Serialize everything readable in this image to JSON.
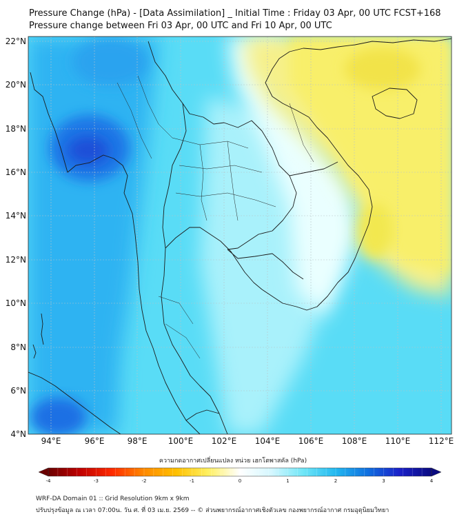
{
  "header": {
    "title_line1": "Pressure Change (hPa) - [Data Assimilation] _ Initial Time : Friday 03 Apr, 00 UTC FCST+168",
    "title_line2": "Pressure change between Fri 03 Apr, 00 UTC and Fri 10 Apr, 00 UTC"
  },
  "map": {
    "lon_ticks": [
      "94°E",
      "96°E",
      "98°E",
      "100°E",
      "102°E",
      "104°E",
      "106°E",
      "108°E",
      "110°E",
      "112°E"
    ],
    "lat_ticks": [
      "22°N",
      "20°N",
      "18°N",
      "16°N",
      "14°N",
      "12°N",
      "10°N",
      "8°N",
      "6°N",
      "4°N"
    ],
    "lon_range": [
      93,
      112.5
    ],
    "lat_range": [
      4,
      22.3
    ],
    "field_colors": {
      "yellow": "#f7f06a",
      "white": "#ffffff",
      "cyan": "#6ee6f7",
      "blue": "#2aa8f0",
      "deep_blue": "#1c5fe0"
    }
  },
  "colorbar": {
    "caption": "ความกดอากาศเปลี่ยนแปลง หน่วย เฮกโตพาสคัล (hPa)",
    "tick_labels": [
      "-4",
      "-3",
      "-2",
      "-1",
      "0",
      "1",
      "2",
      "3",
      "4"
    ],
    "min": -4,
    "max": 4,
    "colors": [
      "#6b0000",
      "#c00000",
      "#ff2a00",
      "#ff8a00",
      "#ffc000",
      "#fff060",
      "#ffffff",
      "#d4f7ff",
      "#6ee6f7",
      "#22b8f0",
      "#1070e0",
      "#1a20c8",
      "#0a0a80"
    ]
  },
  "footer": {
    "line1": "WRF-DA Domain 01 :: Grid Resolution 9km x 9km",
    "line2": "ปรับปรุงข้อมูล ณ เวลา 07:00น. วัน ศ. ที่ 03 เม.ย. 2569 -- © ส่วนพยากรณ์อากาศเชิงตัวเลข กองพยากรณ์อากาศ กรมอุตุนิยมวิทยา"
  }
}
